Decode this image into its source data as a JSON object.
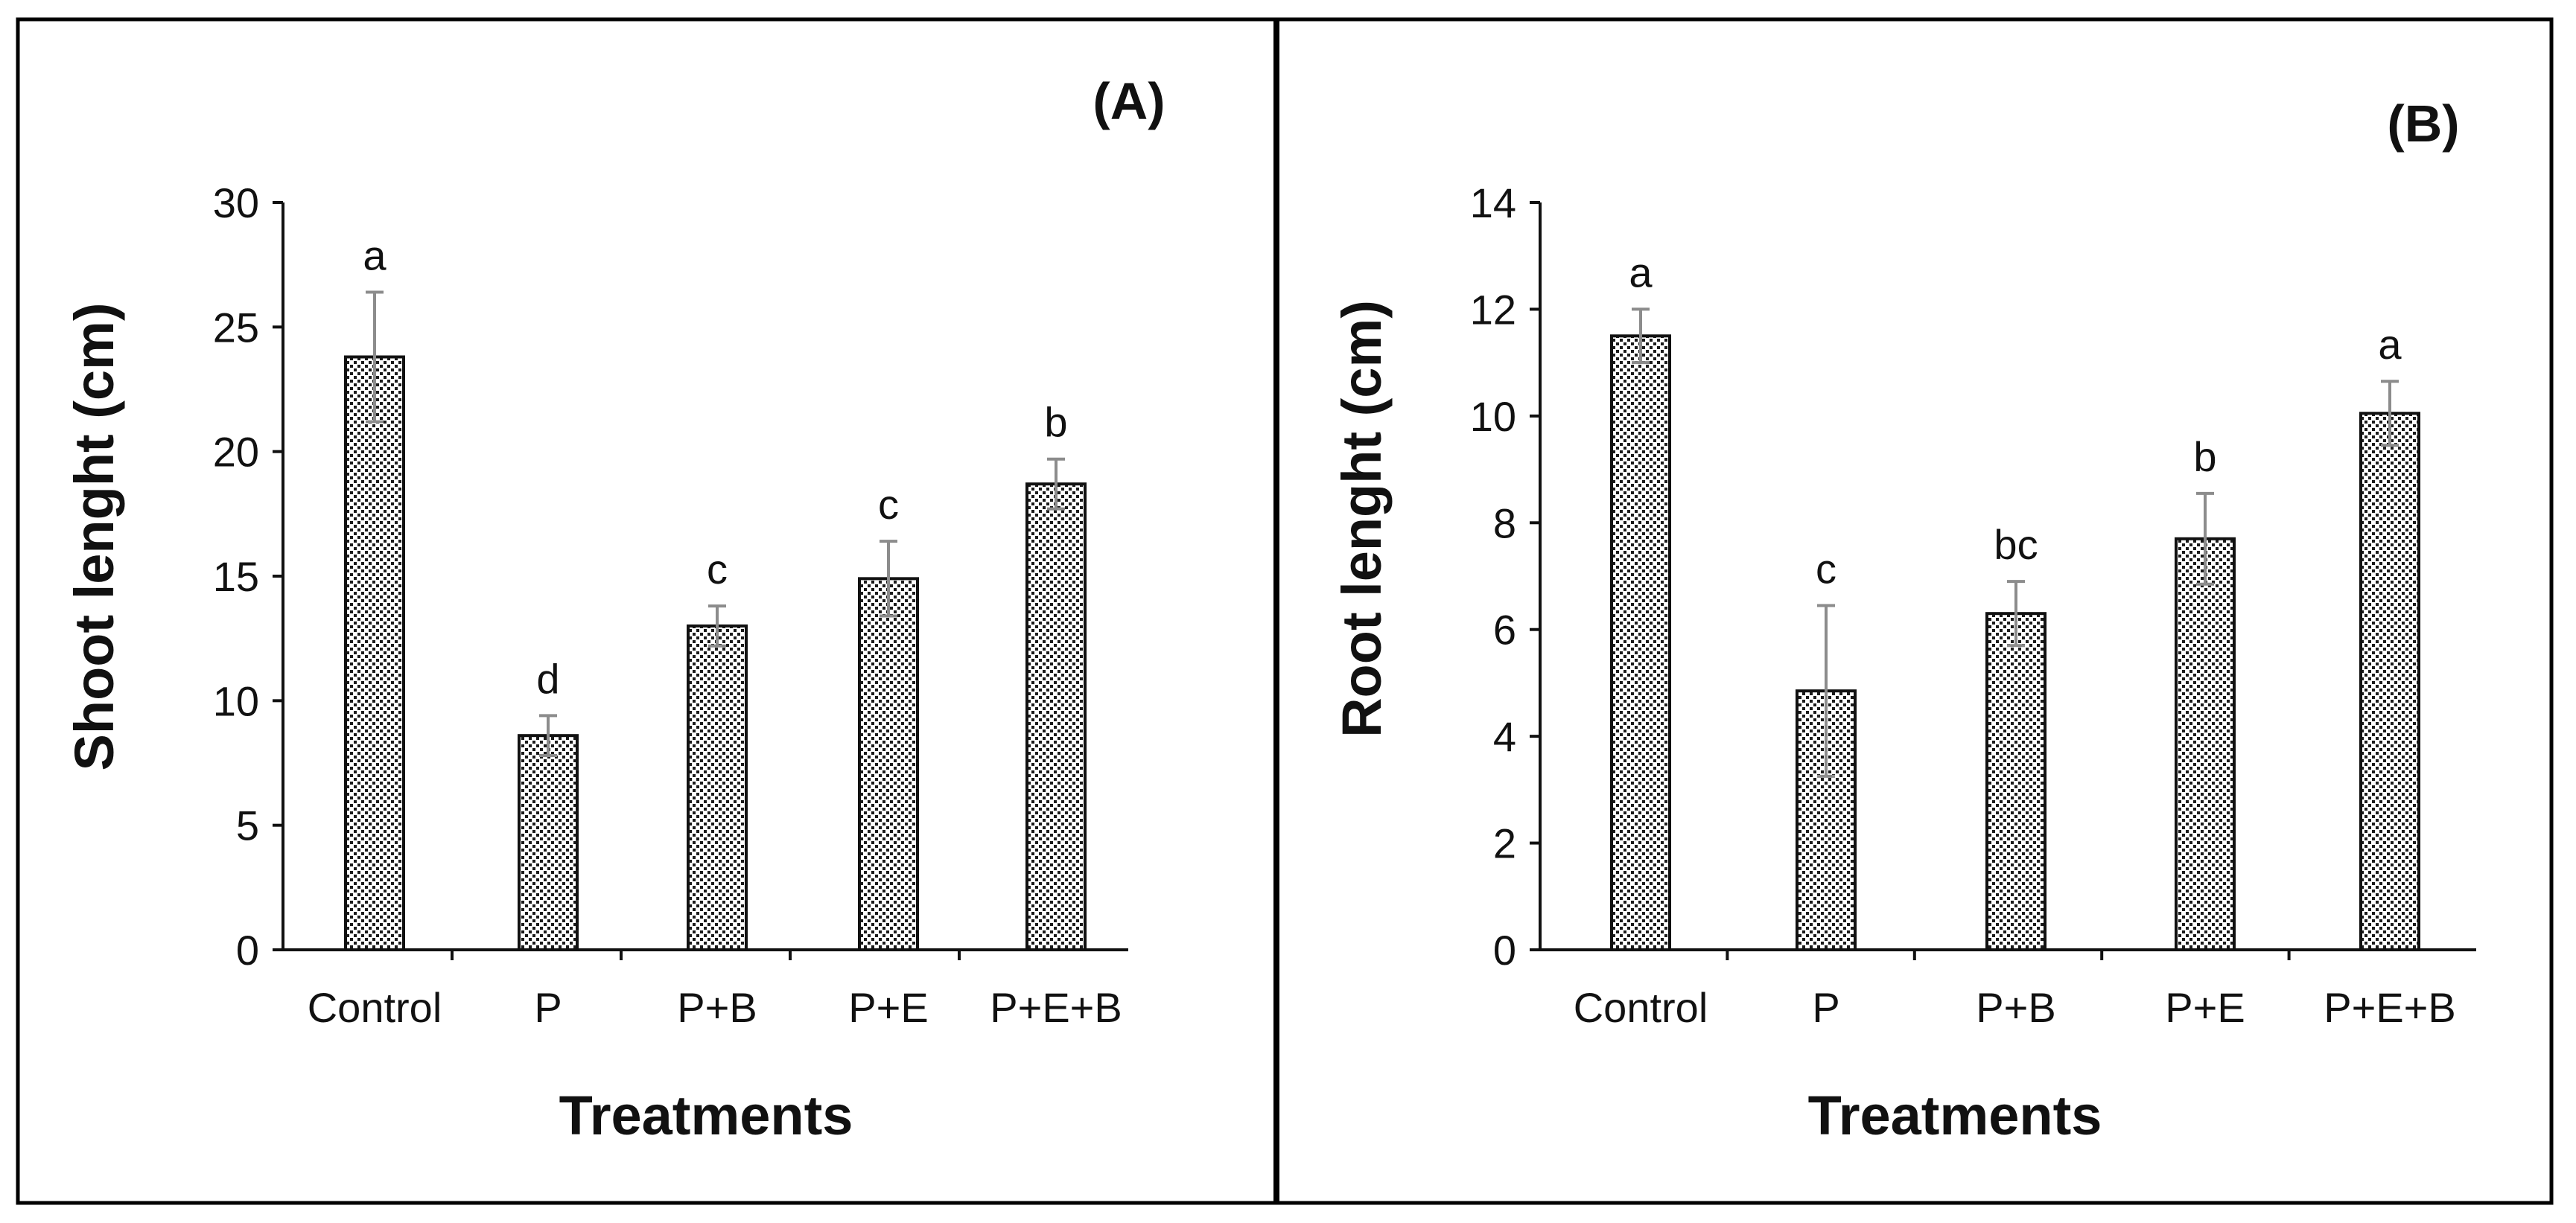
{
  "chart_data": [
    {
      "type": "bar",
      "panel_label": "(A)",
      "categories": [
        "Control",
        "P",
        "P+B",
        "P+E",
        "P+E+B"
      ],
      "values": [
        23.8,
        8.6,
        13.0,
        14.9,
        18.7
      ],
      "errors": [
        2.6,
        0.8,
        0.8,
        1.5,
        1.0
      ],
      "significance": [
        "a",
        "d",
        "c",
        "c",
        "b"
      ],
      "xlabel": "Treatments",
      "ylabel": "Shoot lenght (cm)",
      "ylim": [
        0,
        30
      ],
      "yticks": [
        0,
        5,
        10,
        15,
        20,
        25,
        30
      ],
      "grid": false,
      "legend": "none"
    },
    {
      "type": "bar",
      "panel_label": "(B)",
      "categories": [
        "Control",
        "P",
        "P+B",
        "P+E",
        "P+E+B"
      ],
      "values": [
        11.5,
        4.85,
        6.3,
        7.7,
        10.05
      ],
      "errors": [
        0.5,
        1.6,
        0.6,
        0.85,
        0.6
      ],
      "significance": [
        "a",
        "c",
        "bc",
        "b",
        "a"
      ],
      "xlabel": "Treatments",
      "ylabel": "Root lenght (cm)",
      "ylim": [
        0,
        14
      ],
      "yticks": [
        0,
        2,
        4,
        6,
        8,
        10,
        12,
        14
      ],
      "grid": false,
      "legend": "none"
    }
  ],
  "colors": {
    "bar_fill": "#ffffff",
    "bar_dots": "#1a1a1a",
    "bar_edge": "#111111",
    "error_bar": "#8c8c8c",
    "axis": "#111111",
    "frame": "#000000"
  }
}
